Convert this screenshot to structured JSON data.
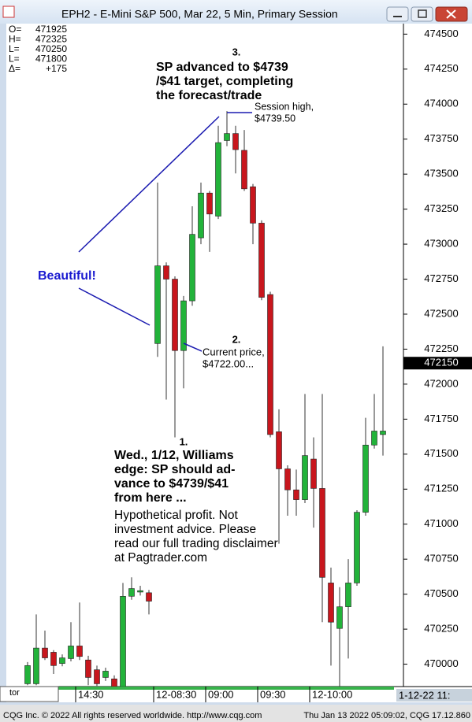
{
  "window": {
    "title": "EPH2 - E-Mini S&P 500, Mar 22, 5 Min, Primary Session",
    "footer_left": "CQG Inc. © 2022 All rights reserved worldwide. http://www.cqg.com",
    "footer_right": "Thu Jan 13 2022 05:09:02, CQG 17.12.860"
  },
  "chart_data": {
    "type": "candlestick",
    "categories": [
      null,
      null,
      null,
      null,
      null,
      null,
      "14:30",
      null,
      null,
      null,
      null,
      null,
      null,
      null,
      null,
      "12-08:30",
      null,
      null,
      null,
      null,
      null,
      "09:00",
      null,
      null,
      null,
      null,
      null,
      "09:30",
      null,
      null,
      null,
      null,
      null,
      "12-10:00",
      null,
      null,
      null,
      null,
      null,
      null,
      null,
      null
    ],
    "open": [
      469860,
      469860,
      470115,
      470085,
      470005,
      470040,
      470130,
      470030,
      469960,
      469905,
      469895,
      469840,
      470485,
      470515,
      470510,
      472290,
      472845,
      472750,
      472240,
      472595,
      473045,
      473365,
      473200,
      473740,
      473790,
      473670,
      473410,
      473150,
      472640,
      471660,
      471395,
      471245,
      471175,
      471465,
      471255,
      470580,
      470255,
      470410,
      470580,
      471085,
      471565,
      471640
    ],
    "high": [
      470015,
      470355,
      470240,
      470100,
      470070,
      470300,
      470440,
      470060,
      469990,
      469975,
      469920,
      470580,
      470620,
      470560,
      470530,
      473440,
      472870,
      472770,
      472630,
      473270,
      473440,
      473380,
      473845,
      473950,
      473845,
      473815,
      473430,
      473170,
      472660,
      471820,
      471420,
      471390,
      471930,
      471620,
      471930,
      470690,
      470550,
      470750,
      471100,
      471760,
      471930,
      472270
    ],
    "low": [
      469850,
      469850,
      470030,
      469930,
      469985,
      470020,
      470030,
      469850,
      469845,
      469880,
      469840,
      469840,
      470460,
      470490,
      470355,
      472195,
      471890,
      471620,
      471970,
      472560,
      473000,
      472945,
      473180,
      473700,
      473505,
      473380,
      473000,
      472600,
      471620,
      470860,
      471060,
      471060,
      471150,
      470975,
      470300,
      469990,
      469840,
      470040,
      470560,
      471060,
      471540,
      471490
    ],
    "close": [
      469990,
      470115,
      470045,
      469990,
      470045,
      470130,
      470055,
      469905,
      469860,
      469950,
      469840,
      470485,
      470540,
      470525,
      470450,
      472845,
      472750,
      472240,
      472595,
      473070,
      473365,
      473215,
      473725,
      473790,
      473675,
      473395,
      473150,
      472620,
      471640,
      471395,
      471245,
      471175,
      471490,
      471255,
      470620,
      470300,
      470410,
      470580,
      471085,
      471565,
      471665,
      471665
    ],
    "up_color": "#22b33a",
    "down_color": "#c8161d",
    "ylim": [
      469840,
      474575
    ],
    "yticks": [
      470000,
      470250,
      470500,
      470750,
      471000,
      471250,
      471500,
      471750,
      472000,
      472250,
      472500,
      472750,
      473000,
      473250,
      473500,
      473750,
      474000,
      474250,
      474500
    ],
    "last_price": 472150,
    "date_label": "1-12-22 11:",
    "corner_label": "tor",
    "info_box": [
      {
        "label": "O=",
        "value": 471925
      },
      {
        "label": "H=",
        "value": 472325
      },
      {
        "label": "L=",
        "value": 470250
      },
      {
        "label": "L=",
        "value": 471800
      },
      {
        "label": "Δ=",
        "value": "+175"
      }
    ],
    "annotations": {
      "step3": [
        "3.",
        "SP advanced to $4739",
        "/$41 target, completing",
        "the forecast/trade"
      ],
      "session_high": [
        "Session high,",
        "$4739.50"
      ],
      "beautiful": "Beautiful!",
      "step2": [
        "2.",
        "Current price,",
        "$4722.00..."
      ],
      "step1": [
        "1.",
        "Wed., 1/12, Williams",
        "edge: SP should ad-",
        "vance to $4739/$41",
        "from here ..."
      ],
      "disclaimer": [
        "Hypothetical profit. Not",
        "investment advice. Please",
        "read our full trading disclaimer",
        "at Pagtrader.com"
      ]
    }
  }
}
